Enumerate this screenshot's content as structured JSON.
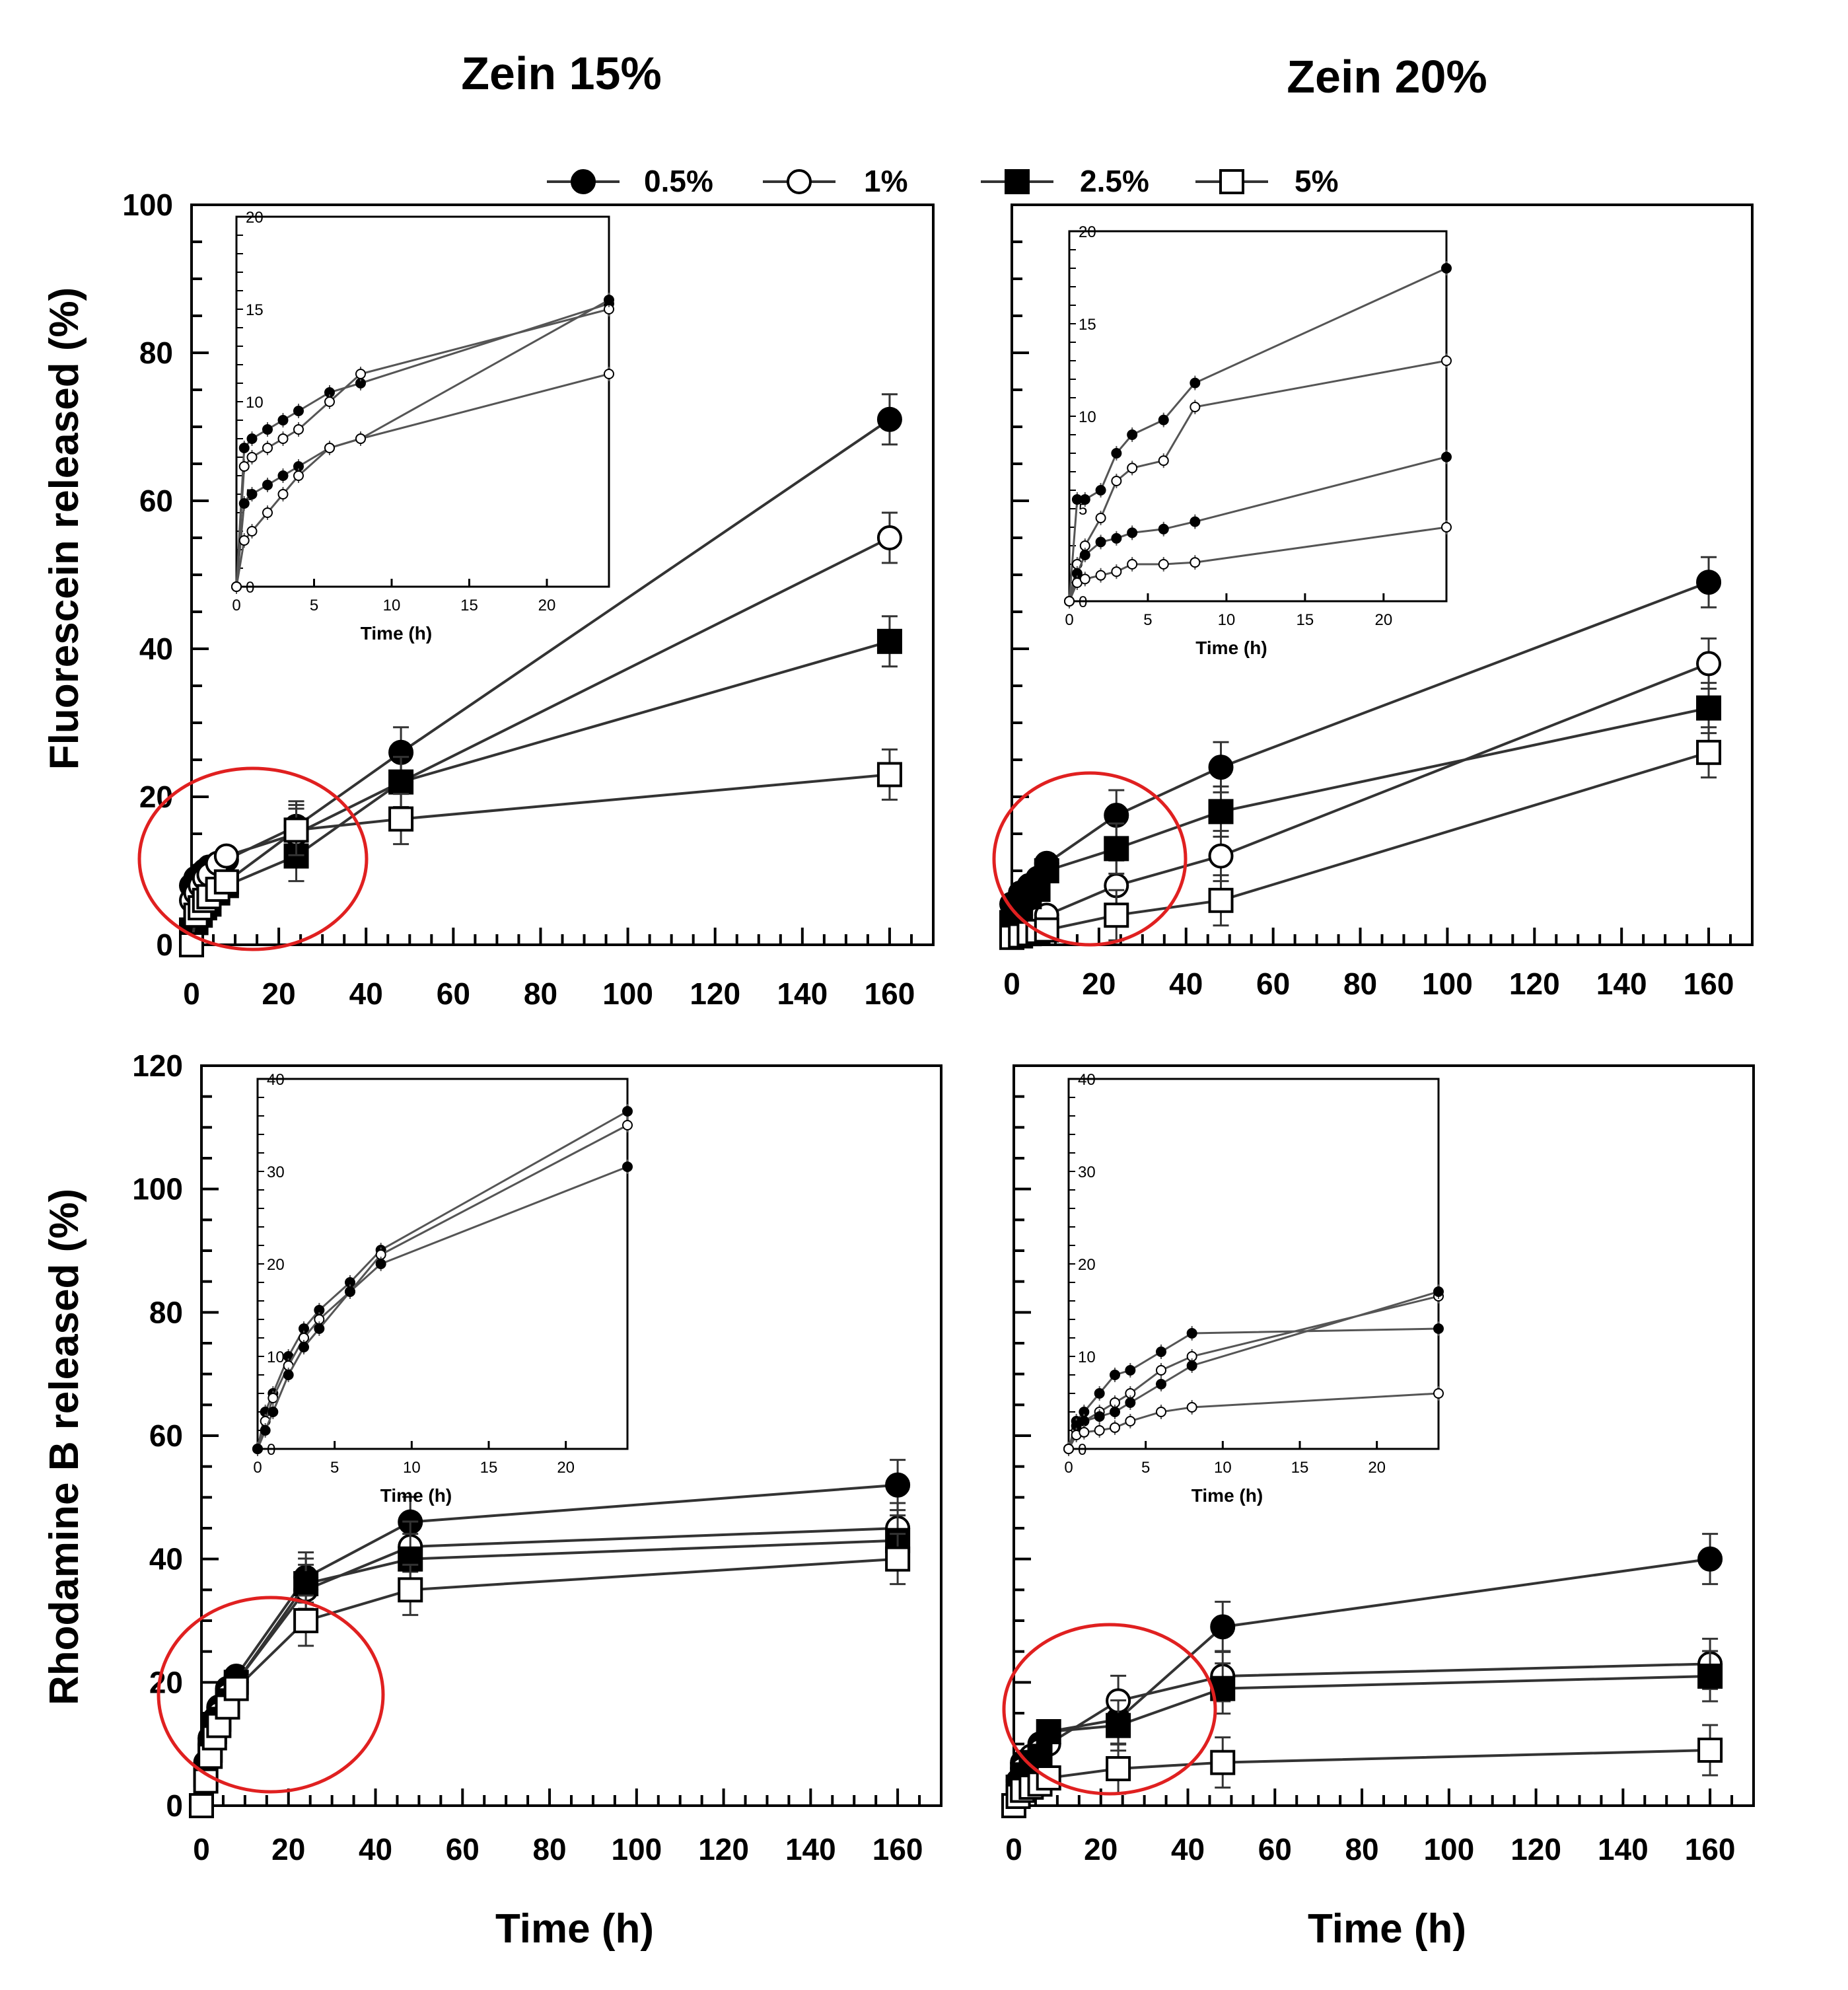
{
  "column_titles": [
    "Zein 15%",
    "Zein 20%"
  ],
  "row_ylabels": [
    "Fluorescein released (%)",
    "Rhodamine B released (%)"
  ],
  "xlabel": "Time (h)",
  "legend": [
    {
      "label": "0.5%",
      "marker": "filled-circle"
    },
    {
      "label": "1%",
      "marker": "open-circle"
    },
    {
      "label": "2.5%",
      "marker": "filled-square"
    },
    {
      "label": "5%",
      "marker": "open-square"
    }
  ],
  "colors": {
    "line": "#333333",
    "marker": "#000000",
    "highlight_circle": "#e02020",
    "inset_line": "#555555"
  },
  "chart_data": [
    {
      "type": "line",
      "panel": "Zein 15% – Fluorescein",
      "xlim": [
        0,
        170
      ],
      "ylim": [
        0,
        100
      ],
      "xticks": [
        0,
        20,
        40,
        60,
        80,
        100,
        120,
        140,
        160
      ],
      "yticks": [
        0,
        20,
        40,
        60,
        80,
        100
      ],
      "x": [
        0,
        1,
        2,
        3,
        4,
        6,
        8,
        24,
        48,
        160
      ],
      "series": [
        {
          "name": "0.5%",
          "values": [
            8,
            9,
            9.5,
            10,
            10.5,
            11,
            11.5,
            16,
            26,
            71
          ]
        },
        {
          "name": "1%",
          "values": [
            6,
            7,
            8,
            9,
            9.5,
            11,
            12,
            15,
            22,
            55
          ]
        },
        {
          "name": "2.5%",
          "values": [
            2,
            3,
            4,
            5,
            5.5,
            7,
            8,
            12,
            22,
            41
          ]
        },
        {
          "name": "5%",
          "values": [
            0,
            4,
            5,
            6,
            6.5,
            7.5,
            8.5,
            15.5,
            17,
            23
          ]
        }
      ],
      "inset": {
        "xlim": [
          0,
          24
        ],
        "ylim": [
          0,
          20
        ],
        "xticks": [
          0,
          5,
          10,
          15,
          20
        ],
        "yticks": [
          0,
          5,
          10,
          15,
          20
        ],
        "xlabel": "Time (h)",
        "x": [
          0,
          0.5,
          1,
          2,
          3,
          4,
          6,
          8,
          24
        ],
        "series": [
          {
            "values": [
              0,
              7.5,
              8,
              8.5,
              9,
              9.5,
              10.5,
              11,
              15.3
            ]
          },
          {
            "values": [
              0,
              6.5,
              7,
              7.5,
              8,
              8.5,
              10,
              11.5,
              15
            ]
          },
          {
            "values": [
              0,
              4.5,
              5,
              5.5,
              6,
              6.5,
              7.5,
              8,
              15.5
            ]
          },
          {
            "values": [
              0,
              2.5,
              3,
              4,
              5,
              6,
              7.5,
              8,
              11.5
            ]
          }
        ]
      }
    },
    {
      "type": "line",
      "panel": "Zein 20% – Fluorescein",
      "xlim": [
        0,
        170
      ],
      "ylim": [
        0,
        100
      ],
      "xticks": [
        0,
        20,
        40,
        60,
        80,
        100,
        120,
        140,
        160
      ],
      "yticks": [],
      "x": [
        0,
        2,
        4,
        6,
        8,
        24,
        48,
        160
      ],
      "series": [
        {
          "name": "0.5%",
          "values": [
            5.5,
            7,
            8,
            9,
            11,
            17.5,
            24,
            49
          ]
        },
        {
          "name": "1%",
          "values": [
            2,
            2.5,
            3,
            3.5,
            4,
            8,
            12,
            38
          ]
        },
        {
          "name": "2.5%",
          "values": [
            3,
            5,
            6.5,
            7.5,
            10,
            13,
            18,
            32
          ]
        },
        {
          "name": "5%",
          "values": [
            1,
            1.2,
            1.5,
            1.8,
            2,
            4,
            6,
            26
          ]
        }
      ],
      "inset": {
        "xlim": [
          0,
          24
        ],
        "ylim": [
          0,
          20
        ],
        "xticks": [
          0,
          5,
          10,
          15,
          20
        ],
        "yticks": [
          0,
          5,
          10,
          15,
          20
        ],
        "xlabel": "Time (h)",
        "x": [
          0,
          0.5,
          1,
          2,
          3,
          4,
          6,
          8,
          24
        ],
        "series": [
          {
            "values": [
              0,
              5.5,
              5.5,
              6,
              8,
              9,
              9.8,
              11.8,
              18
            ]
          },
          {
            "values": [
              0,
              2,
              3,
              4.5,
              6.5,
              7.2,
              7.6,
              10.5,
              13
            ]
          },
          {
            "values": [
              0,
              1.5,
              2.5,
              3.2,
              3.4,
              3.7,
              3.9,
              4.3,
              7.8
            ]
          },
          {
            "values": [
              0,
              1,
              1.2,
              1.4,
              1.6,
              2,
              2,
              2.1,
              4
            ]
          }
        ]
      }
    },
    {
      "type": "line",
      "panel": "Zein 15% – Rhodamine B",
      "xlim": [
        0,
        170
      ],
      "ylim": [
        0,
        120
      ],
      "xticks": [
        0,
        20,
        40,
        60,
        80,
        100,
        120,
        140,
        160
      ],
      "yticks": [
        0,
        20,
        40,
        60,
        80,
        100,
        120
      ],
      "x": [
        0,
        1,
        2,
        3,
        4,
        6,
        8,
        24,
        48,
        160
      ],
      "series": [
        {
          "name": "0.5%",
          "values": [
            0,
            7,
            11,
            14,
            16,
            19,
            21,
            37,
            46,
            52
          ]
        },
        {
          "name": "1%",
          "values": [
            0,
            6,
            10,
            13,
            15,
            18,
            20,
            35,
            42,
            45
          ]
        },
        {
          "name": "2.5%",
          "values": [
            0,
            5,
            9,
            12,
            14,
            17,
            20,
            36,
            40,
            43
          ]
        },
        {
          "name": "5%",
          "values": [
            0,
            4,
            8,
            11,
            13,
            16,
            19,
            30,
            35,
            40
          ]
        }
      ],
      "inset": {
        "xlim": [
          0,
          24
        ],
        "ylim": [
          0,
          40
        ],
        "xticks": [
          0,
          5,
          10,
          15,
          20
        ],
        "yticks": [
          0,
          10,
          20,
          30,
          40
        ],
        "xlabel": "Time (h)",
        "x": [
          0,
          0.5,
          1,
          2,
          3,
          4,
          6,
          8,
          24
        ],
        "series": [
          {
            "values": [
              0,
              4,
              6,
              10,
              13,
              15,
              18,
              21.5,
              36.5
            ]
          },
          {
            "values": [
              0,
              3,
              5.5,
              9,
              12,
              14,
              17,
              21,
              35
            ]
          },
          {
            "values": [
              0,
              2,
              4,
              8,
              11,
              13,
              17,
              20,
              30.5
            ]
          }
        ]
      }
    },
    {
      "type": "line",
      "panel": "Zein 20% – Rhodamine B",
      "xlim": [
        0,
        170
      ],
      "ylim": [
        0,
        120
      ],
      "xticks": [
        0,
        20,
        40,
        60,
        80,
        100,
        120,
        140,
        160
      ],
      "yticks": [],
      "x": [
        0,
        1,
        2,
        4,
        6,
        8,
        24,
        48,
        160
      ],
      "series": [
        {
          "name": "0.5%",
          "values": [
            0,
            4,
            7,
            8,
            10,
            12,
            14,
            29,
            40
          ]
        },
        {
          "name": "1%",
          "values": [
            0,
            4,
            6,
            8,
            9,
            10,
            17,
            21,
            23
          ]
        },
        {
          "name": "2.5%",
          "values": [
            0,
            3,
            5,
            7,
            8,
            12,
            13,
            19,
            21
          ]
        },
        {
          "name": "5%",
          "values": [
            0,
            1.5,
            2.5,
            3,
            3.5,
            4.5,
            6,
            7,
            9
          ]
        }
      ],
      "inset": {
        "xlim": [
          0,
          24
        ],
        "ylim": [
          0,
          40
        ],
        "xticks": [
          0,
          5,
          10,
          15,
          20
        ],
        "yticks": [
          0,
          10,
          20,
          30,
          40
        ],
        "xlabel": "Time (h)",
        "x": [
          0,
          0.5,
          1,
          2,
          3,
          4,
          6,
          8,
          24
        ],
        "series": [
          {
            "values": [
              0,
              3,
              4,
              6,
              8,
              8.5,
              10.5,
              12.5,
              13
            ]
          },
          {
            "values": [
              0,
              2,
              3,
              4,
              5,
              6,
              8.5,
              10,
              16.5
            ]
          },
          {
            "values": [
              0,
              2.5,
              3,
              3.5,
              4,
              5,
              7,
              9,
              17
            ]
          },
          {
            "values": [
              0,
              1.5,
              1.8,
              2,
              2.3,
              3,
              4,
              4.5,
              6
            ]
          }
        ]
      }
    }
  ]
}
